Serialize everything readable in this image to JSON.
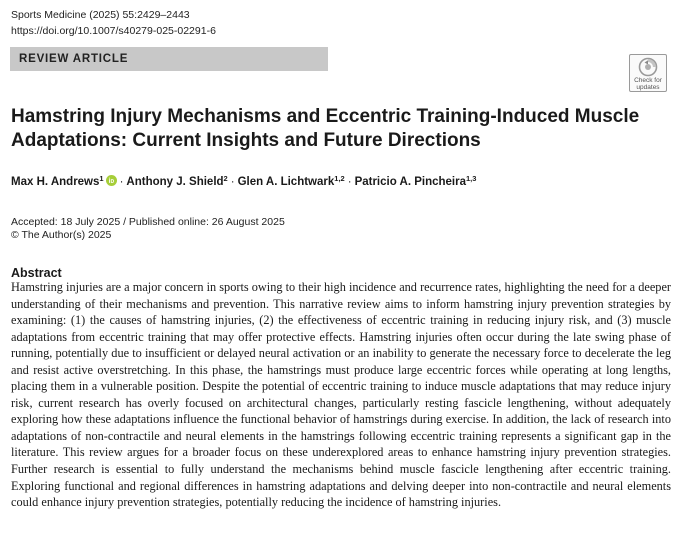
{
  "header": {
    "journal_citation": "Sports Medicine (2025) 55:2429–2443",
    "doi": "https://doi.org/10.1007/s40279-025-02291-6"
  },
  "article_type": "REVIEW ARTICLE",
  "check_updates": {
    "label_line1": "Check for",
    "label_line2": "updates",
    "icon": "check-for-updates-icon"
  },
  "title": "Hamstring Injury Mechanisms and Eccentric Training-Induced Muscle Adaptations: Current Insights and Future Directions",
  "authors": [
    {
      "name": "Max H. Andrews",
      "affiliation": "1",
      "orcid": true
    },
    {
      "name": "Anthony J. Shield",
      "affiliation": "2"
    },
    {
      "name": "Glen A. Lichtwark",
      "affiliation": "1,2"
    },
    {
      "name": "Patricio A. Pincheira",
      "affiliation": "1,3"
    }
  ],
  "author_separator": "·",
  "dates": "Accepted: 18 July 2025 / Published online: 26 August 2025",
  "copyright": "© The Author(s) 2025",
  "abstract": {
    "heading": "Abstract",
    "text": "Hamstring injuries are a major concern in sports owing to their high incidence and recurrence rates, highlighting the need for a deeper understanding of their mechanisms and prevention. This narrative review aims to inform hamstring injury pre­vention strategies by examining: (1) the causes of hamstring injuries, (2) the effectiveness of eccentric training in reducing injury risk, and (3) muscle adaptations from eccentric training that may offer protective effects. Hamstring injuries often occur during the late swing phase of running, potentially due to insufficient or delayed neural activation or an inability to generate the necessary force to decelerate the leg and resist active overstretching. In this phase, the hamstrings must produce large eccentric forces while operating at long lengths, placing them in a vulnerable position. Despite the potential of eccen­tric training to induce muscle adaptations that may reduce injury risk, current research has overly focused on architectural changes, particularly resting fascicle lengthening, without adequately exploring how these adaptations influence the functional behavior of hamstrings during exercise. In addition, the lack of research into adaptations of non-contractile and neural ele­ments in the hamstrings following eccentric training represents a significant gap in the literature. This review argues for a broader focus on these underexplored areas to enhance hamstring injury prevention strategies. Further research is essential to fully understand the mechanisms behind muscle fascicle lengthening after eccentric training. Exploring functional and regional differences in hamstring adaptations and delving deeper into non-contractile and neural elements could enhance injury prevention strategies, potentially reducing the incidence of hamstring injuries."
  },
  "colors": {
    "article_type_bar": "#c8c8c8",
    "orcid_green": "#a6ce39",
    "text": "#1a1a1a"
  }
}
